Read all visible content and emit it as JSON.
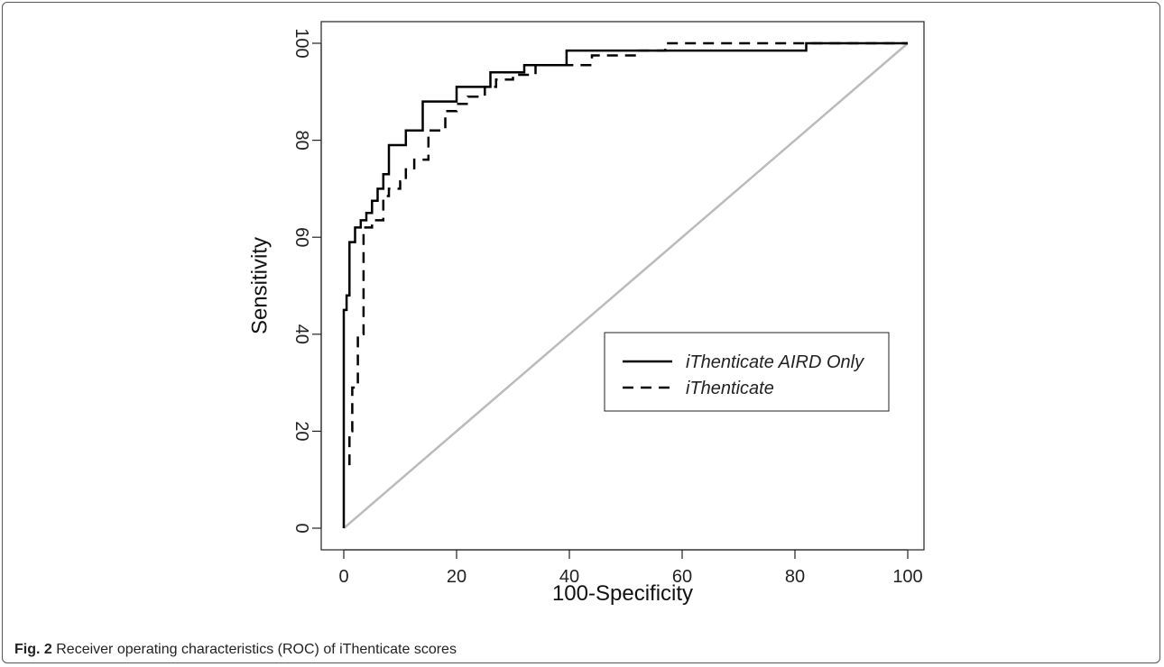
{
  "caption": {
    "label": "Fig. 2",
    "text": "Receiver operating characteristics (ROC) of iThenticate scores"
  },
  "chart_data": {
    "type": "line",
    "title": "",
    "xlabel": "100-Specificity",
    "ylabel": "Sensitivity",
    "xlim": [
      0,
      100
    ],
    "ylim": [
      0,
      100
    ],
    "xticks": [
      0,
      20,
      40,
      60,
      80,
      100
    ],
    "yticks": [
      0,
      20,
      40,
      60,
      80,
      100
    ],
    "grid": false,
    "legend_position": "center-right",
    "reference_line": {
      "x": [
        0,
        100
      ],
      "y": [
        0,
        100
      ],
      "color": "#bbbbbb"
    },
    "series": [
      {
        "name": "iThenticate AIRD Only",
        "style": "solid",
        "color": "#000000",
        "x": [
          0,
          0,
          0.5,
          0.5,
          1,
          1,
          2,
          2,
          3,
          3,
          4,
          4,
          5,
          5,
          6,
          6,
          7,
          7,
          8,
          8,
          11,
          11,
          14,
          14,
          20,
          20,
          26,
          26,
          32,
          32,
          39.5,
          39.5,
          82,
          82,
          100
        ],
        "y": [
          0,
          45,
          45,
          48,
          48,
          59,
          59,
          62,
          62,
          63.5,
          63.5,
          65,
          65,
          67.5,
          67.5,
          70,
          70,
          73,
          73,
          79,
          79,
          82,
          82,
          88,
          88,
          91,
          91,
          94,
          94,
          95.5,
          95.5,
          98.5,
          98.5,
          100,
          100
        ]
      },
      {
        "name": "iThenticate",
        "style": "dashed",
        "color": "#000000",
        "x": [
          1,
          1,
          1.5,
          1.5,
          2.5,
          2.5,
          3.5,
          3.5,
          5,
          5,
          7,
          7,
          8,
          8,
          10,
          10,
          11,
          11,
          12.5,
          12.5,
          15,
          15,
          18,
          18,
          20,
          20,
          22,
          22,
          25,
          25,
          27,
          27,
          30,
          30,
          34,
          34,
          44,
          44,
          52,
          52,
          57,
          57,
          100
        ],
        "y": [
          13,
          20,
          20,
          29,
          29,
          40,
          40,
          62,
          62,
          63.5,
          63.5,
          68.5,
          68.5,
          70,
          70,
          71.5,
          71.5,
          74,
          74,
          76,
          76,
          82,
          82,
          86,
          86,
          87.5,
          87.5,
          89,
          89,
          91,
          91,
          92.5,
          92.5,
          93.5,
          93.5,
          95.5,
          95.5,
          97.5,
          97.5,
          98.5,
          98.5,
          100,
          100
        ]
      }
    ]
  }
}
